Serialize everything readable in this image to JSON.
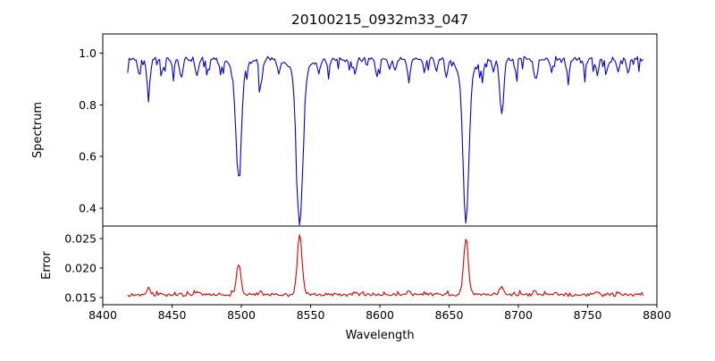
{
  "figure": {
    "title": "20100215_0932m33_047",
    "xlabel": "Wavelength",
    "background": "#ffffff"
  },
  "axes": {
    "xlim": [
      8400,
      8800
    ],
    "xticks": {
      "values": [
        8400,
        8450,
        8500,
        8550,
        8600,
        8650,
        8700,
        8750,
        8800
      ],
      "labels": [
        "8400",
        "8450",
        "8500",
        "8550",
        "8600",
        "8650",
        "8700",
        "8750",
        "8800"
      ]
    }
  },
  "chart_data": [
    {
      "type": "line",
      "name": "spectrum",
      "ylabel": "Spectrum",
      "color": "#0000dd",
      "ylim": [
        0.33,
        1.075
      ],
      "yticks": {
        "values": [
          0.4,
          0.6,
          0.8,
          1.0
        ],
        "labels": [
          "0.4",
          "0.6",
          "0.8",
          "1.0"
        ]
      },
      "x_start": 8418,
      "x_end": 8790,
      "x_step": 1,
      "continuum": 0.978,
      "noise_amplitude": 0.011,
      "absorption_lines": [
        {
          "center": 8426,
          "depth": 0.05,
          "sigma": 1.0
        },
        {
          "center": 8433,
          "depth": 0.13,
          "sigma": 1.2
        },
        {
          "center": 8443,
          "depth": 0.05,
          "sigma": 1.0
        },
        {
          "center": 8451,
          "depth": 0.04,
          "sigma": 1.0
        },
        {
          "center": 8456,
          "depth": 0.05,
          "sigma": 0.9
        },
        {
          "center": 8468,
          "depth": 0.07,
          "sigma": 1.1
        },
        {
          "center": 8476,
          "depth": 0.04,
          "sigma": 0.9
        },
        {
          "center": 8485,
          "depth": 0.05,
          "sigma": 1.0
        },
        {
          "center": 8498.02,
          "depth": 0.42,
          "sigma": 2.0
        },
        {
          "center": 8498.02,
          "depth": 0.04,
          "sigma": 6.0
        },
        {
          "center": 8514,
          "depth": 0.1,
          "sigma": 1.2
        },
        {
          "center": 8527,
          "depth": 0.06,
          "sigma": 1.0
        },
        {
          "center": 8542.09,
          "depth": 0.6,
          "sigma": 2.2
        },
        {
          "center": 8542.09,
          "depth": 0.05,
          "sigma": 7.0
        },
        {
          "center": 8556,
          "depth": 0.05,
          "sigma": 1.0
        },
        {
          "center": 8563,
          "depth": 0.04,
          "sigma": 0.9
        },
        {
          "center": 8582,
          "depth": 0.06,
          "sigma": 1.0
        },
        {
          "center": 8598,
          "depth": 0.07,
          "sigma": 1.1
        },
        {
          "center": 8607,
          "depth": 0.04,
          "sigma": 0.9
        },
        {
          "center": 8611,
          "depth": 0.05,
          "sigma": 0.9
        },
        {
          "center": 8621,
          "depth": 0.08,
          "sigma": 1.1
        },
        {
          "center": 8632,
          "depth": 0.05,
          "sigma": 0.9
        },
        {
          "center": 8641,
          "depth": 0.04,
          "sigma": 0.9
        },
        {
          "center": 8648,
          "depth": 0.06,
          "sigma": 1.0
        },
        {
          "center": 8662.14,
          "depth": 0.58,
          "sigma": 2.1
        },
        {
          "center": 8662.14,
          "depth": 0.05,
          "sigma": 7.0
        },
        {
          "center": 8674,
          "depth": 0.06,
          "sigma": 1.0
        },
        {
          "center": 8682,
          "depth": 0.05,
          "sigma": 0.9
        },
        {
          "center": 8688,
          "depth": 0.22,
          "sigma": 1.4
        },
        {
          "center": 8698,
          "depth": 0.05,
          "sigma": 1.0
        },
        {
          "center": 8712,
          "depth": 0.08,
          "sigma": 1.1
        },
        {
          "center": 8724,
          "depth": 0.05,
          "sigma": 1.0
        },
        {
          "center": 8736,
          "depth": 0.07,
          "sigma": 1.0
        },
        {
          "center": 8748,
          "depth": 0.05,
          "sigma": 1.0
        },
        {
          "center": 8757,
          "depth": 0.06,
          "sigma": 1.0
        },
        {
          "center": 8764,
          "depth": 0.04,
          "sigma": 0.9
        },
        {
          "center": 8772,
          "depth": 0.05,
          "sigma": 1.0
        },
        {
          "center": 8779,
          "depth": 0.05,
          "sigma": 0.9
        }
      ],
      "observed_minima": [
        {
          "wavelength": 8498,
          "flux": 0.52
        },
        {
          "wavelength": 8542,
          "flux": 0.33
        },
        {
          "wavelength": 8662,
          "flux": 0.35
        },
        {
          "wavelength": 8688,
          "flux": 0.75
        }
      ]
    },
    {
      "type": "line",
      "name": "error",
      "ylabel": "Error",
      "color": "#dd0000",
      "ylim": [
        0.0138,
        0.0271
      ],
      "yticks": {
        "values": [
          0.015,
          0.02,
          0.025
        ],
        "labels": [
          "0.015",
          "0.020",
          "0.025"
        ]
      },
      "x_start": 8418,
      "x_end": 8790,
      "x_step": 1,
      "baseline": 0.0155,
      "noise_amplitude": 0.00035,
      "peaks": [
        {
          "center": 8433,
          "amp": 0.0012,
          "sigma": 1.3
        },
        {
          "center": 8468,
          "amp": 0.0005,
          "sigma": 1.2
        },
        {
          "center": 8498.02,
          "amp": 0.005,
          "sigma": 1.6
        },
        {
          "center": 8514,
          "amp": 0.0006,
          "sigma": 1.2
        },
        {
          "center": 8542.09,
          "amp": 0.0102,
          "sigma": 1.7
        },
        {
          "center": 8582,
          "amp": 0.0005,
          "sigma": 1.2
        },
        {
          "center": 8621,
          "amp": 0.0005,
          "sigma": 1.2
        },
        {
          "center": 8662.14,
          "amp": 0.0093,
          "sigma": 1.7
        },
        {
          "center": 8688,
          "amp": 0.0014,
          "sigma": 1.3
        },
        {
          "center": 8712,
          "amp": 0.0006,
          "sigma": 1.2
        },
        {
          "center": 8757,
          "amp": 0.0005,
          "sigma": 1.2
        }
      ],
      "observed_maxima": [
        {
          "wavelength": 8498,
          "error": 0.0206
        },
        {
          "wavelength": 8542,
          "error": 0.0257
        },
        {
          "wavelength": 8662,
          "error": 0.0248
        }
      ]
    }
  ]
}
